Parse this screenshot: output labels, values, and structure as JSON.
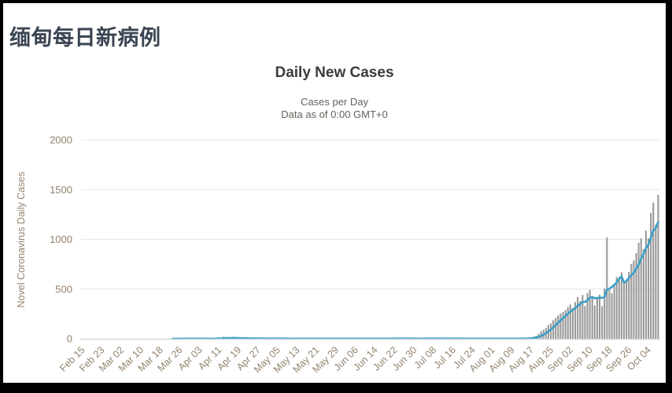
{
  "page": {
    "title": "缅甸每日新病例"
  },
  "chart": {
    "title": "Daily New Cases",
    "subtitle": "Cases per Day",
    "note": "Data as of 0:00 GMT+0"
  },
  "chart_data": {
    "type": "bar",
    "title": "Daily New Cases",
    "subtitle": "Cases per Day",
    "note": "Data as of 0:00 GMT+0",
    "xlabel": "",
    "ylabel": "Novel Coronavirus Daily Cases",
    "ylim": [
      0,
      2000
    ],
    "y_ticks": [
      0,
      500,
      1000,
      1500,
      2000
    ],
    "y_tick_labels": [
      "0",
      "500",
      "1000",
      "1500",
      "2000"
    ],
    "grid": "horizontal",
    "legend": "none",
    "x_start": "Feb 15",
    "x_end": "Oct 08",
    "x_frequency": "daily",
    "x_tick_every_days": 8,
    "x_tick_labels": [
      "Feb 15",
      "Feb 23",
      "Mar 02",
      "Mar 10",
      "Mar 18",
      "Mar 26",
      "Apr 03",
      "Apr 11",
      "Apr 19",
      "Apr 27",
      "May 05",
      "May 13",
      "May 21",
      "May 29",
      "Jun 06",
      "Jun 14",
      "Jun 22",
      "Jun 30",
      "Jul 08",
      "Jul 16",
      "Jul 24",
      "Aug 01",
      "Aug 09",
      "Aug 17",
      "Aug 25",
      "Sep 02",
      "Sep 10",
      "Sep 18",
      "Sep 26",
      "Oct 04"
    ],
    "series": [
      {
        "name": "Daily Cases",
        "type": "bar",
        "color": "#9a9a9a",
        "values": [
          0,
          0,
          0,
          0,
          0,
          0,
          0,
          0,
          0,
          0,
          0,
          0,
          0,
          0,
          0,
          0,
          0,
          0,
          0,
          0,
          0,
          0,
          0,
          0,
          0,
          0,
          0,
          0,
          0,
          0,
          0,
          0,
          0,
          0,
          0,
          0,
          0,
          2,
          2,
          0,
          3,
          1,
          2,
          2,
          1,
          1,
          1,
          4,
          0,
          1,
          1,
          1,
          1,
          2,
          1,
          4,
          11,
          2,
          21,
          4,
          11,
          3,
          9,
          2,
          4,
          7,
          2,
          4,
          4,
          7,
          2,
          2,
          2,
          1,
          0,
          2,
          2,
          9,
          2,
          0,
          4,
          0,
          2,
          0,
          3,
          2,
          1,
          0,
          1,
          2,
          1,
          4,
          2,
          0,
          2,
          1,
          3,
          1,
          1,
          1,
          1,
          2,
          1,
          3,
          1,
          2,
          1,
          1,
          3,
          1,
          2,
          1,
          1,
          1,
          2,
          1,
          2,
          1,
          1,
          2,
          1,
          1,
          2,
          3,
          1,
          2,
          1,
          1,
          2,
          5,
          1,
          2,
          2,
          1,
          2,
          1,
          3,
          2,
          1,
          3,
          1,
          2,
          4,
          1,
          2,
          1,
          2,
          1,
          3,
          1,
          2,
          1,
          4,
          2,
          1,
          2,
          1,
          2,
          1,
          3,
          1,
          2,
          1,
          1,
          2,
          3,
          2,
          1,
          2,
          1,
          2,
          1,
          3,
          1,
          2,
          1,
          2,
          1,
          2,
          1,
          2,
          1,
          6,
          10,
          14,
          21,
          30,
          50,
          75,
          90,
          110,
          140,
          155,
          185,
          210,
          235,
          255,
          270,
          290,
          320,
          345,
          310,
          370,
          420,
          380,
          440,
          330,
          460,
          490,
          420,
          335,
          405,
          444,
          327,
          506,
          1019,
          490,
          457,
          550,
          620,
          590,
          670,
          580,
          596,
          671,
          753,
          788,
          862,
          965,
          1010,
          903,
          1089,
          1010,
          1265,
          1369,
          1146,
          1447
        ]
      },
      {
        "name": "7-day moving average",
        "type": "line",
        "color": "#3aa0c8",
        "derived_from": "Daily Cases",
        "window_days": 7
      }
    ]
  }
}
